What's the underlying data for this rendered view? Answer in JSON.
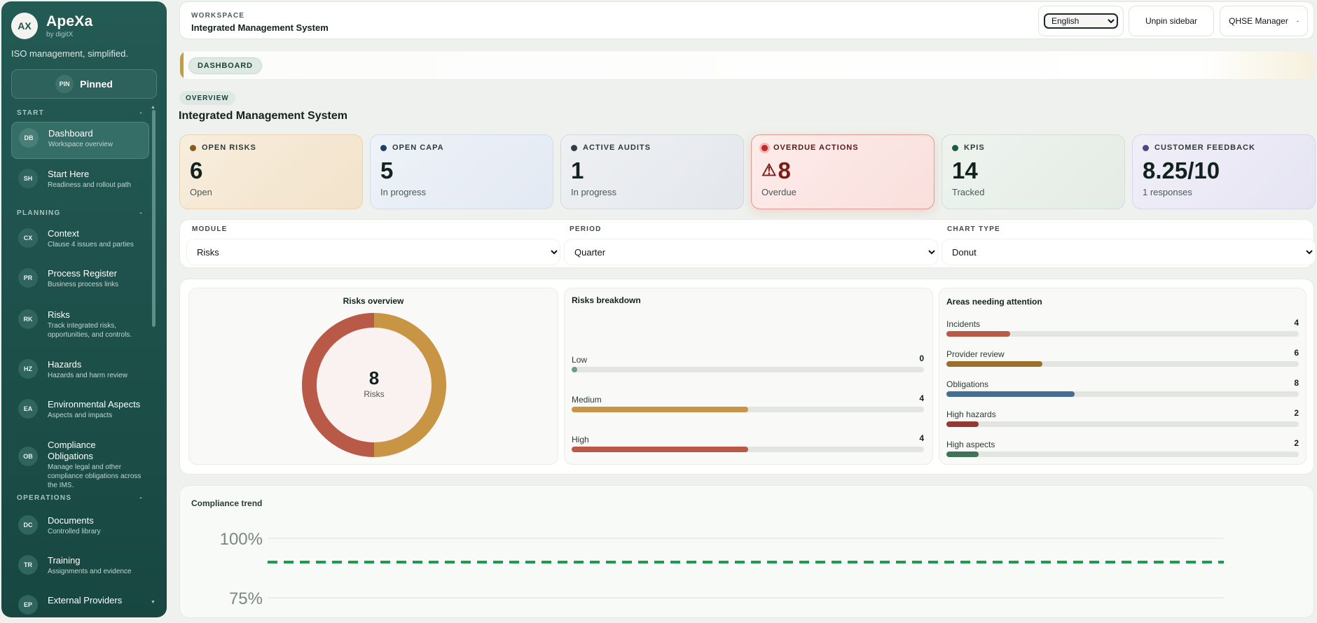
{
  "brand": {
    "badge": "AX",
    "name": "ApeXa",
    "by": "by digitX",
    "tagline": "ISO management, simplified."
  },
  "pin": {
    "badge": "PIN",
    "label": "Pinned"
  },
  "sections": {
    "start": "START",
    "planning": "PLANNING",
    "operations": "OPERATIONS",
    "toggle": "-"
  },
  "nav": [
    {
      "code": "DB",
      "title": "Dashboard",
      "sub": "Workspace overview",
      "active": true
    },
    {
      "code": "SH",
      "title": "Start Here",
      "sub": "Readiness and rollout path"
    },
    {
      "code": "CX",
      "title": "Context",
      "sub": "Clause 4 issues and parties"
    },
    {
      "code": "PR",
      "title": "Process Register",
      "sub": "Business process links"
    },
    {
      "code": "RK",
      "title": "Risks",
      "sub": "Track integrated risks, opportunities, and controls."
    },
    {
      "code": "HZ",
      "title": "Hazards",
      "sub": "Hazards and harm review"
    },
    {
      "code": "EA",
      "title": "Environmental Aspects",
      "sub": "Aspects and impacts"
    },
    {
      "code": "OB",
      "title": "Compliance Obligations",
      "sub": "Manage legal and other compliance obligations across the IMS."
    },
    {
      "code": "DC",
      "title": "Documents",
      "sub": "Controlled library"
    },
    {
      "code": "TR",
      "title": "Training",
      "sub": "Assignments and evidence"
    },
    {
      "code": "EP",
      "title": "External Providers",
      "sub": ""
    }
  ],
  "header": {
    "workspace_label": "WORKSPACE",
    "workspace_title": "Integrated Management System",
    "language": "English",
    "unpin_label": "Unpin sidebar",
    "role": "QHSE Manager",
    "role_caret": "-"
  },
  "breadcrumb": "DASHBOARD",
  "overview_pill": "OVERVIEW",
  "page_title": "Integrated Management System",
  "kpis": [
    {
      "label": "OPEN RISKS",
      "value": "6",
      "sub": "Open",
      "dot": "#8a5a1c"
    },
    {
      "label": "OPEN CAPA",
      "value": "5",
      "sub": "In progress",
      "dot": "#1d3f6e"
    },
    {
      "label": "ACTIVE AUDITS",
      "value": "1",
      "sub": "In progress",
      "dot": "#313d48"
    },
    {
      "label": "OVERDUE ACTIONS",
      "value": "8",
      "sub": "Overdue",
      "dot": "#c62828",
      "warn_glyph": "⚠"
    },
    {
      "label": "KPIS",
      "value": "14",
      "sub": "Tracked",
      "dot": "#1c5a48"
    },
    {
      "label": "CUSTOMER FEEDBACK",
      "value": "8.25/10",
      "sub": "1 responses",
      "dot": "#4d4680"
    }
  ],
  "filters": {
    "module_label": "MODULE",
    "module_value": "Risks",
    "period_label": "PERIOD",
    "period_value": "Quarter",
    "chart_label": "CHART TYPE",
    "chart_value": "Donut"
  },
  "donut": {
    "title": "Risks overview",
    "center_value": "8",
    "center_label": "Risks",
    "slices": [
      {
        "name": "Medium",
        "value": 4,
        "color": "#c79543"
      },
      {
        "name": "High",
        "value": 4,
        "color": "#b95948"
      }
    ]
  },
  "breakdown": {
    "title": "Risks breakdown",
    "max": 8,
    "rows": [
      {
        "label": "Low",
        "value": 0,
        "color": "#6f9c87"
      },
      {
        "label": "Medium",
        "value": 4,
        "color": "#c79543"
      },
      {
        "label": "High",
        "value": 4,
        "color": "#b95948"
      }
    ]
  },
  "attention": {
    "title": "Areas needing attention",
    "max": 22,
    "rows": [
      {
        "label": "Incidents",
        "value": 4,
        "color": "#b95948"
      },
      {
        "label": "Provider review",
        "value": 6,
        "color": "#9d6e2a"
      },
      {
        "label": "Obligations",
        "value": 8,
        "color": "#456c91"
      },
      {
        "label": "High hazards",
        "value": 2,
        "color": "#943a33"
      },
      {
        "label": "High aspects",
        "value": 2,
        "color": "#3f7358"
      }
    ]
  },
  "chart_data": {
    "type": "line",
    "title": "Compliance trend",
    "y_ticks": [
      "100%",
      "75%"
    ],
    "ylim": [
      50,
      100
    ],
    "series": [
      {
        "values": [
          90,
          90
        ],
        "color": "#1e9b4e",
        "dashed": true
      }
    ],
    "grid": true
  }
}
